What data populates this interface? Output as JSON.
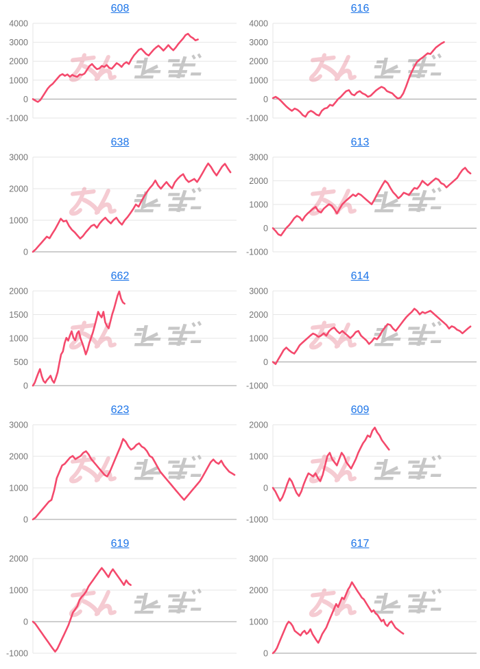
{
  "style": {
    "background": "#ffffff",
    "line_color": "#f4496c",
    "title_color": "#1a73e8",
    "label_color": "#757575",
    "grid_color": "#e6e6e6",
    "zero_line_color": "#9e9e9e",
    "watermark_pink": "#e26377",
    "watermark_gray": "#9e9e9e"
  },
  "watermark": {
    "text": "みんレポ",
    "pink_text": "みん",
    "gray_text": "レポ"
  },
  "chart_data": [
    {
      "type": "line",
      "title": "608",
      "xlabel": "",
      "ylabel": "",
      "ylim": [
        -1000,
        4000
      ],
      "yticks": [
        4000,
        3000,
        2000,
        1000,
        0,
        -1000
      ],
      "x_end_fraction": 0.81,
      "legend": false,
      "grid": true,
      "values": [
        0,
        -80,
        -150,
        -50,
        150,
        350,
        550,
        700,
        800,
        950,
        1100,
        1250,
        1320,
        1230,
        1300,
        1180,
        1280,
        1210,
        1180,
        1300,
        1280,
        1350,
        1550,
        1750,
        1850,
        1700,
        1580,
        1620,
        1750,
        1700,
        1800,
        1650,
        1600,
        1750,
        1900,
        1820,
        1700,
        1870,
        1950,
        1850,
        2100,
        2300,
        2450,
        2600,
        2660,
        2520,
        2380,
        2300,
        2450,
        2600,
        2720,
        2820,
        2700,
        2560,
        2700,
        2850,
        2700,
        2580,
        2720,
        2900,
        3050,
        3200,
        3380,
        3450,
        3300,
        3220,
        3100,
        3150
      ]
    },
    {
      "type": "line",
      "title": "616",
      "xlabel": "",
      "ylabel": "",
      "ylim": [
        -1000,
        4000
      ],
      "yticks": [
        4000,
        3000,
        2000,
        1000,
        0,
        -1000
      ],
      "x_end_fraction": 0.84,
      "legend": false,
      "grid": true,
      "values": [
        50,
        120,
        30,
        -100,
        -250,
        -400,
        -520,
        -620,
        -500,
        -560,
        -680,
        -850,
        -930,
        -700,
        -620,
        -700,
        -820,
        -870,
        -620,
        -500,
        -460,
        -300,
        -350,
        -180,
        0,
        120,
        280,
        420,
        470,
        260,
        200,
        350,
        420,
        300,
        240,
        120,
        180,
        320,
        460,
        560,
        650,
        580,
        420,
        360,
        300,
        150,
        30,
        80,
        300,
        650,
        1050,
        1400,
        1700,
        1950,
        2080,
        2180,
        2300,
        2420,
        2380,
        2550,
        2720,
        2830,
        2930,
        3010
      ]
    },
    {
      "type": "line",
      "title": "638",
      "xlabel": "",
      "ylabel": "",
      "ylim": [
        0,
        3000
      ],
      "yticks": [
        3000,
        2000,
        1000,
        0
      ],
      "x_end_fraction": 0.97,
      "legend": false,
      "grid": true,
      "values": [
        0,
        80,
        180,
        280,
        380,
        480,
        430,
        580,
        720,
        880,
        1050,
        960,
        990,
        820,
        700,
        620,
        520,
        420,
        500,
        620,
        720,
        820,
        860,
        760,
        900,
        1000,
        1080,
        980,
        900,
        1010,
        1080,
        950,
        860,
        1000,
        1100,
        1220,
        1350,
        1500,
        1430,
        1600,
        1760,
        1900,
        2020,
        2120,
        2260,
        2100,
        2000,
        2110,
        2210,
        2100,
        2010,
        2200,
        2310,
        2400,
        2460,
        2300,
        2210,
        2260,
        2310,
        2210,
        2350,
        2500,
        2660,
        2800,
        2690,
        2540,
        2420,
        2560,
        2700,
        2790,
        2650,
        2520
      ]
    },
    {
      "type": "line",
      "title": "613",
      "xlabel": "",
      "ylabel": "",
      "ylim": [
        -1000,
        3000
      ],
      "yticks": [
        3000,
        2000,
        1000,
        0,
        -1000
      ],
      "x_end_fraction": 0.97,
      "legend": false,
      "grid": true,
      "values": [
        0,
        -120,
        -260,
        -310,
        -150,
        10,
        120,
        260,
        420,
        520,
        460,
        320,
        500,
        620,
        720,
        820,
        900,
        720,
        660,
        820,
        920,
        1010,
        950,
        800,
        620,
        820,
        1010,
        1120,
        1220,
        1320,
        1420,
        1350,
        1460,
        1400,
        1300,
        1200,
        1100,
        1010,
        1200,
        1420,
        1620,
        1820,
        2000,
        1900,
        1700,
        1520,
        1400,
        1260,
        1360,
        1500,
        1450,
        1400,
        1560,
        1700,
        1660,
        1800,
        2000,
        1900,
        1810,
        1910,
        2010,
        2100,
        2050,
        1900,
        1850,
        1720,
        1820,
        1920,
        2020,
        2120,
        2300,
        2460,
        2550,
        2400,
        2310
      ]
    },
    {
      "type": "line",
      "title": "662",
      "xlabel": "",
      "ylabel": "",
      "ylim": [
        0,
        2000
      ],
      "yticks": [
        2000,
        1500,
        1000,
        500,
        0
      ],
      "x_end_fraction": 0.45,
      "legend": false,
      "grid": true,
      "values": [
        0,
        60,
        160,
        260,
        350,
        200,
        100,
        60,
        120,
        160,
        210,
        110,
        60,
        160,
        280,
        480,
        660,
        720,
        900,
        1010,
        950,
        1060,
        1150,
        1010,
        960,
        1100,
        1150,
        1000,
        900,
        790,
        660,
        760,
        900,
        1010,
        1120,
        1260,
        1400,
        1560,
        1490,
        1440,
        1560,
        1340,
        1260,
        1210,
        1360,
        1510,
        1620,
        1760,
        1900,
        1990,
        1840,
        1760,
        1730
      ]
    },
    {
      "type": "line",
      "title": "614",
      "xlabel": "",
      "ylabel": "",
      "ylim": [
        -1000,
        3000
      ],
      "yticks": [
        3000,
        2000,
        1000,
        0,
        -1000
      ],
      "x_end_fraction": 0.97,
      "legend": false,
      "grid": true,
      "values": [
        0,
        -90,
        110,
        300,
        500,
        610,
        500,
        410,
        350,
        510,
        700,
        810,
        910,
        1010,
        1110,
        1200,
        1150,
        1060,
        1110,
        1210,
        1110,
        1300,
        1400,
        1450,
        1310,
        1210,
        1310,
        1210,
        1110,
        1010,
        1110,
        1260,
        1310,
        1110,
        1010,
        910,
        760,
        860,
        1010,
        960,
        1110,
        1310,
        1460,
        1600,
        1560,
        1410,
        1310,
        1460,
        1610,
        1760,
        1900,
        2010,
        2110,
        2250,
        2160,
        2010,
        2110,
        2060,
        2110,
        2160,
        2060,
        1960,
        1860,
        1760,
        1660,
        1560,
        1410,
        1510,
        1460,
        1360,
        1310,
        1210,
        1310,
        1410,
        1500
      ]
    },
    {
      "type": "line",
      "title": "623",
      "xlabel": "",
      "ylabel": "",
      "ylim": [
        0,
        3000
      ],
      "yticks": [
        3000,
        2000,
        1000,
        0
      ],
      "x_end_fraction": 0.99,
      "legend": false,
      "grid": true,
      "values": [
        0,
        60,
        160,
        260,
        360,
        460,
        560,
        620,
        920,
        1310,
        1510,
        1710,
        1760,
        1860,
        1960,
        2010,
        1910,
        1960,
        2010,
        2110,
        2160,
        2060,
        1910,
        1810,
        1710,
        1610,
        1510,
        1410,
        1360,
        1510,
        1710,
        1910,
        2110,
        2310,
        2550,
        2460,
        2310,
        2210,
        2260,
        2360,
        2410,
        2310,
        2260,
        2160,
        2010,
        1960,
        1810,
        1660,
        1510,
        1410,
        1310,
        1210,
        1110,
        1010,
        910,
        810,
        710,
        620,
        720,
        820,
        920,
        1020,
        1120,
        1220,
        1360,
        1510,
        1660,
        1810,
        1900,
        1810,
        1760,
        1860,
        1710,
        1610,
        1510,
        1460,
        1410
      ]
    },
    {
      "type": "line",
      "title": "609",
      "xlabel": "",
      "ylabel": "",
      "ylim": [
        -1000,
        2000
      ],
      "yticks": [
        2000,
        1000,
        0,
        -1000
      ],
      "x_end_fraction": 0.57,
      "legend": false,
      "grid": true,
      "values": [
        0,
        -110,
        -260,
        -410,
        -300,
        -110,
        110,
        300,
        200,
        10,
        -160,
        -260,
        -110,
        110,
        300,
        460,
        410,
        360,
        460,
        310,
        210,
        410,
        710,
        1010,
        1110,
        910,
        810,
        710,
        910,
        1110,
        1010,
        810,
        710,
        610,
        760,
        910,
        1110,
        1260,
        1410,
        1510,
        1660,
        1610,
        1810,
        1910,
        1760,
        1660,
        1510,
        1410,
        1310,
        1210
      ]
    },
    {
      "type": "line",
      "title": "619",
      "xlabel": "",
      "ylabel": "",
      "ylim": [
        -1000,
        2000
      ],
      "yticks": [
        2000,
        1000,
        0,
        -1000
      ],
      "x_end_fraction": 0.48,
      "legend": false,
      "grid": true,
      "values": [
        0,
        -60,
        -160,
        -260,
        -360,
        -460,
        -560,
        -660,
        -760,
        -860,
        -950,
        -860,
        -710,
        -560,
        -410,
        -260,
        -110,
        90,
        290,
        390,
        490,
        690,
        790,
        860,
        960,
        1110,
        1210,
        1310,
        1410,
        1510,
        1610,
        1700,
        1610,
        1510,
        1410,
        1560,
        1660,
        1560,
        1460,
        1360,
        1260,
        1160,
        1310,
        1210,
        1160
      ]
    },
    {
      "type": "line",
      "title": "617",
      "xlabel": "",
      "ylabel": "",
      "ylim": [
        0,
        3000
      ],
      "yticks": [
        3000,
        2000,
        1000,
        0
      ],
      "x_end_fraction": 0.64,
      "legend": false,
      "grid": true,
      "values": [
        0,
        60,
        160,
        310,
        460,
        610,
        760,
        910,
        1000,
        950,
        860,
        710,
        660,
        610,
        560,
        660,
        710,
        610,
        660,
        760,
        610,
        510,
        410,
        330,
        460,
        610,
        710,
        810,
        960,
        1110,
        1260,
        1410,
        1560,
        1460,
        1610,
        1760,
        1710,
        1860,
        2010,
        2110,
        2250,
        2150,
        2050,
        1950,
        1860,
        1760,
        1710,
        1610,
        1510,
        1410,
        1310,
        1360,
        1260,
        1210,
        1110,
        1010,
        1060,
        910,
        860,
        960,
        1010,
        910,
        810,
        760,
        710,
        660,
        620
      ]
    }
  ]
}
